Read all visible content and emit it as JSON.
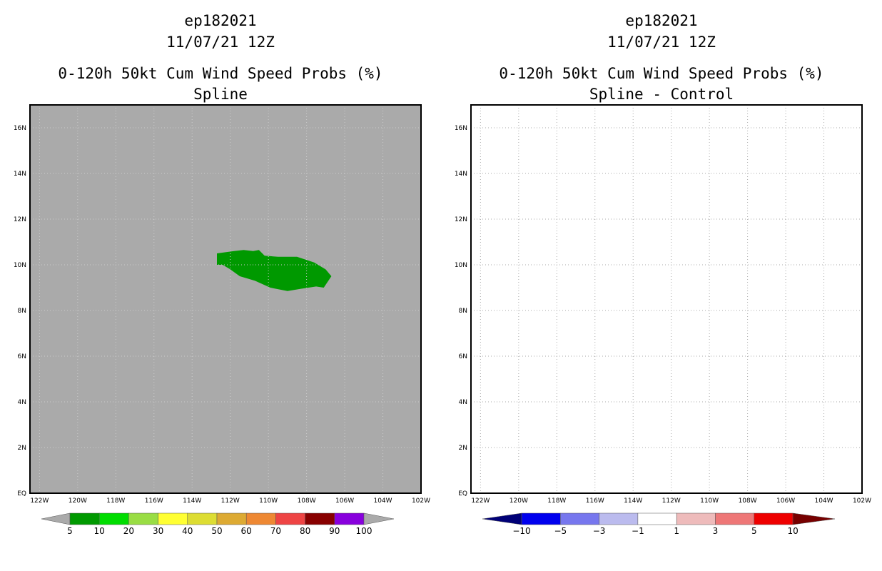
{
  "chart_data": [
    {
      "type": "heatmap",
      "storm_id": "ep182021",
      "init_time": "11/07/21 12Z",
      "title": "0-120h 50kt Cum Wind Speed Probs (%)",
      "subtitle": "Spline",
      "x_range_lon": [
        -122.5,
        -102
      ],
      "y_range_lat": [
        0,
        17
      ],
      "x_tick_values": [
        -122,
        -120,
        -118,
        -116,
        -114,
        -112,
        -110,
        -108,
        -106,
        -104,
        -102
      ],
      "x_tick_labels": [
        "122W",
        "120W",
        "118W",
        "116W",
        "114W",
        "112W",
        "110W",
        "108W",
        "106W",
        "104W",
        "102W"
      ],
      "y_tick_values": [
        0,
        2,
        4,
        6,
        8,
        10,
        12,
        14,
        16
      ],
      "y_tick_labels": [
        "EQ",
        "2N",
        "4N",
        "6N",
        "8N",
        "10N",
        "12N",
        "14N",
        "16N"
      ],
      "grid": true,
      "background_color": "#aaaaaa",
      "contour": {
        "level": "5-10",
        "color": "#009900",
        "polygon_lonlat": [
          [
            -112.7,
            10.5
          ],
          [
            -111.8,
            10.6
          ],
          [
            -111.3,
            10.65
          ],
          [
            -110.8,
            10.6
          ],
          [
            -110.5,
            10.65
          ],
          [
            -110.2,
            10.4
          ],
          [
            -109.5,
            10.35
          ],
          [
            -108.5,
            10.35
          ],
          [
            -107.6,
            10.1
          ],
          [
            -107.0,
            9.8
          ],
          [
            -106.7,
            9.5
          ],
          [
            -107.1,
            9.0
          ],
          [
            -107.5,
            9.05
          ],
          [
            -108.3,
            8.95
          ],
          [
            -109.0,
            8.85
          ],
          [
            -109.9,
            9.0
          ],
          [
            -110.7,
            9.3
          ],
          [
            -111.5,
            9.5
          ],
          [
            -112.0,
            9.8
          ],
          [
            -112.4,
            10.0
          ],
          [
            -112.7,
            10.0
          ]
        ]
      },
      "colorbar": {
        "labels": [
          "5",
          "10",
          "20",
          "30",
          "40",
          "50",
          "60",
          "70",
          "80",
          "90",
          "100"
        ],
        "colors": [
          "#009900",
          "#00dd00",
          "#99dd44",
          "#ffff33",
          "#dddd33",
          "#ddaa33",
          "#ee8833",
          "#ee4444",
          "#880000",
          "#8800dd"
        ],
        "under_color": "#aaaaaa",
        "over_color": "#aaaaaa"
      }
    },
    {
      "type": "heatmap",
      "storm_id": "ep182021",
      "init_time": "11/07/21 12Z",
      "title": "0-120h 50kt Cum Wind Speed Probs (%)",
      "subtitle": "Spline - Control",
      "x_range_lon": [
        -122.5,
        -102
      ],
      "y_range_lat": [
        0,
        17
      ],
      "x_tick_values": [
        -122,
        -120,
        -118,
        -116,
        -114,
        -112,
        -110,
        -108,
        -106,
        -104,
        -102
      ],
      "x_tick_labels": [
        "122W",
        "120W",
        "118W",
        "116W",
        "114W",
        "112W",
        "110W",
        "108W",
        "106W",
        "104W",
        "102W"
      ],
      "y_tick_values": [
        0,
        2,
        4,
        6,
        8,
        10,
        12,
        14,
        16
      ],
      "y_tick_labels": [
        "EQ",
        "2N",
        "4N",
        "6N",
        "8N",
        "10N",
        "12N",
        "14N",
        "16N"
      ],
      "grid": true,
      "background_color": "#ffffff",
      "colorbar": {
        "labels": [
          "−10",
          "−5",
          "−3",
          "−1",
          "1",
          "3",
          "5",
          "10"
        ],
        "colors": [
          "#0000ee",
          "#7777ee",
          "#bbbbee",
          "#ffffff",
          "#eebbbb",
          "#ee7777",
          "#ee0000"
        ],
        "under_color": "#000077",
        "over_color": "#770000"
      }
    }
  ]
}
